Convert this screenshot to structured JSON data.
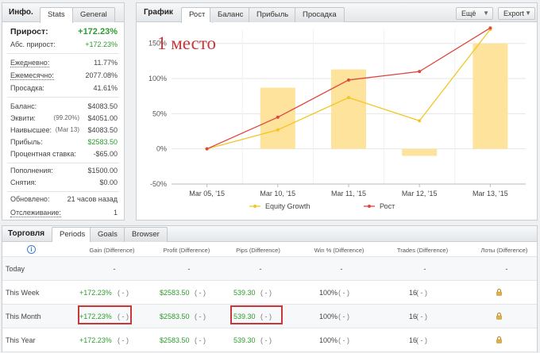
{
  "info": {
    "title": "Инфо.",
    "tabs": [
      "Stats",
      "General"
    ],
    "gain_label": "Прирост:",
    "gain_value": "+172.23%",
    "abs_gain_label": "Абс. прирост:",
    "abs_gain_value": "+172.23%",
    "daily_label": "Ежедневно:",
    "daily_value": "11.77%",
    "monthly_label": "Ежемесячно:",
    "monthly_value": "2077.08%",
    "drawdown_label": "Просадка:",
    "drawdown_value": "41.61%",
    "balance_label": "Баланс:",
    "balance_value": "$4083.50",
    "equity_label": "Эквити:",
    "equity_sub": "(99.20%)",
    "equity_value": "$4051.00",
    "highest_label": "Наивысшее:",
    "highest_sub": "(Mar 13)",
    "highest_value": "$4083.50",
    "profit_label": "Прибыль:",
    "profit_value": "$2583.50",
    "interest_label": "Процентная ставка:",
    "interest_value": "-$65.00",
    "deposits_label": "Пополнения:",
    "deposits_value": "$1500.00",
    "withdrawals_label": "Снятия:",
    "withdrawals_value": "$0.00",
    "updated_label": "Обновлено:",
    "updated_value": "21 часов назад",
    "tracking_label": "Отслеживание:",
    "tracking_value": "1"
  },
  "graph": {
    "title": "График",
    "tabs": [
      "Рост",
      "Баланс",
      "Прибыль",
      "Просадка"
    ],
    "more_button": "Ещё",
    "export_button": "Export",
    "annotation": "1 место",
    "legend_equity": "Equity Growth",
    "legend_growth": "Рост"
  },
  "chart_data": {
    "type": "bar",
    "categories": [
      "Mar 05, '15",
      "Mar 10, '15",
      "Mar 11, '15",
      "Mar 12, '15",
      "Mar 13, '15"
    ],
    "y_ticks": [
      "150%",
      "100%",
      "50%",
      "0%",
      "-50%"
    ],
    "ylim": [
      -50,
      150
    ],
    "series": [
      {
        "name": "Bars",
        "values": [
          0,
          87,
          113,
          -10,
          150
        ],
        "color": "#fde39c"
      },
      {
        "name": "Equity Growth",
        "values": [
          0,
          27,
          73,
          40,
          170
        ],
        "color": "#f3c623"
      },
      {
        "name": "Рост",
        "values": [
          0,
          45,
          98,
          110,
          172
        ],
        "color": "#e0463c"
      }
    ],
    "grid": true,
    "legend": "bottom"
  },
  "trading": {
    "title": "Торговля",
    "tabs": [
      "Periods",
      "Goals",
      "Browser"
    ],
    "columns": [
      "Gain (Difference)",
      "Profit (Difference)",
      "Pips (Difference)",
      "Win % (Difference)",
      "Trades (Difference)",
      "Лоты (Difference)"
    ],
    "rows": [
      {
        "period": "Today",
        "gain": "-",
        "profit": "-",
        "pips": "-",
        "win": "-",
        "trades": "-",
        "lots": "-"
      },
      {
        "period": "This Week",
        "gain": "+172.23%",
        "profit": "$2583.50",
        "pips": "539.30",
        "win": "100%",
        "trades": "16",
        "lots": "lock"
      },
      {
        "period": "This Month",
        "gain": "+172.23%",
        "profit": "$2583.50",
        "pips": "539.30",
        "win": "100%",
        "trades": "16",
        "lots": "lock"
      },
      {
        "period": "This Year",
        "gain": "+172.23%",
        "profit": "$2583.50",
        "pips": "539.30",
        "win": "100%",
        "trades": "16",
        "lots": "lock"
      }
    ],
    "diff": "( - )"
  },
  "colors": {
    "accent_green": "#2e9b2e",
    "highlight_red": "#c8373a",
    "bar_fill": "#fde39c"
  }
}
